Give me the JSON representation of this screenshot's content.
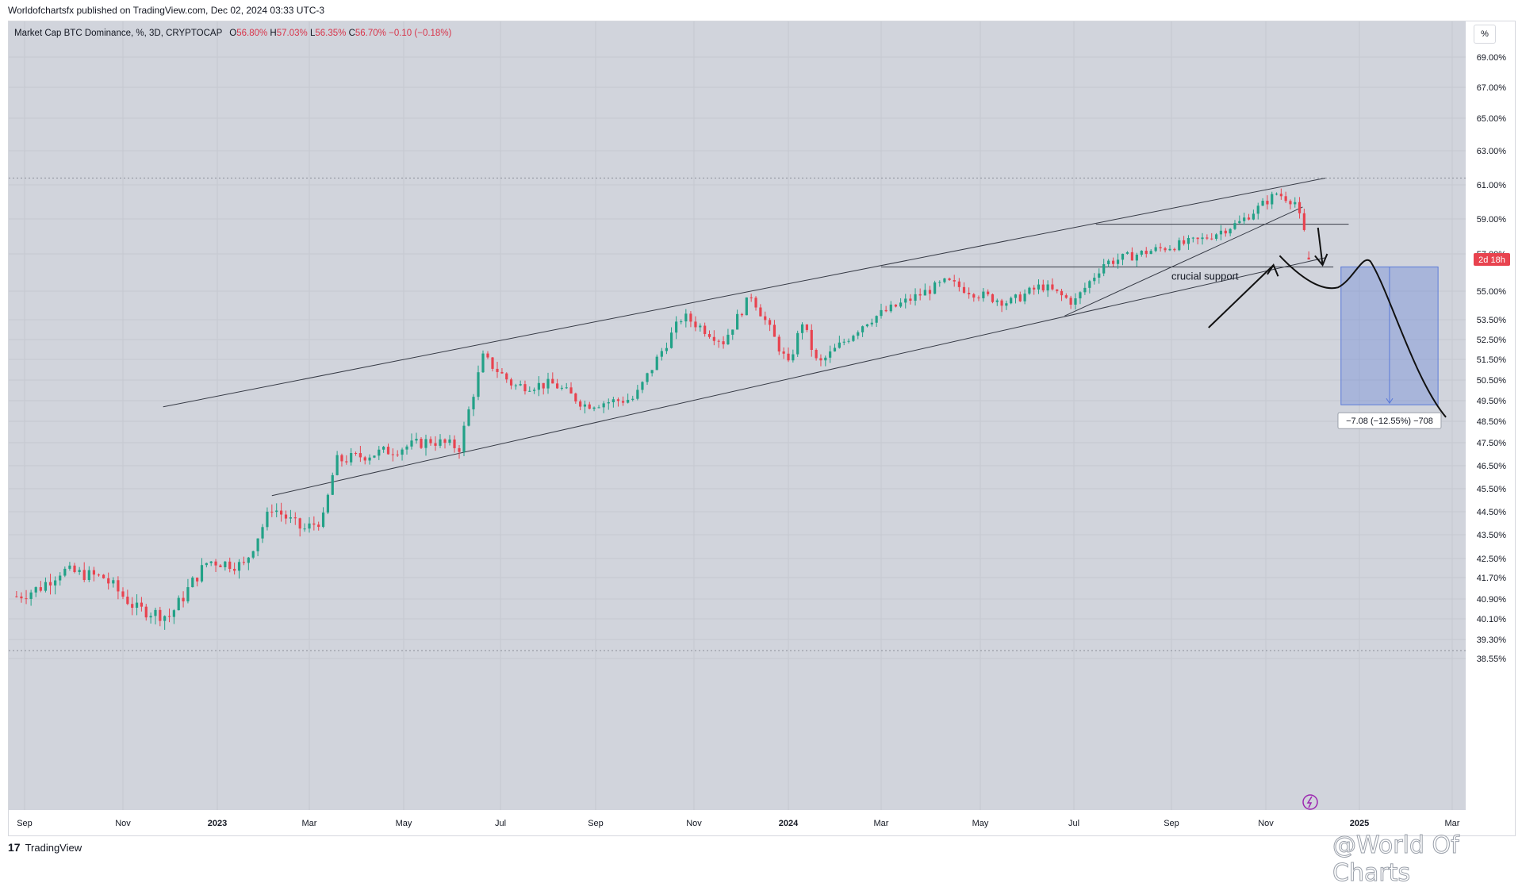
{
  "header": {
    "published": "Worldofchartsfx published on TradingView.com, Dec 02, 2024 03:33 UTC-3"
  },
  "legend": {
    "symbol": "Market Cap BTC Dominance, %, 3D, CRYPTOCAP",
    "o_label": "O",
    "o": "56.80%",
    "h_label": "H",
    "h": "57.03%",
    "l_label": "L",
    "l": "56.35%",
    "c_label": "C",
    "c": "56.70%",
    "change": "−0.10 (−0.18%)"
  },
  "toolbar": {
    "scale_label": "%"
  },
  "footer": {
    "brand": "TradingView",
    "logo": "17",
    "watermark": "@World Of Charts"
  },
  "colors": {
    "up": "#22a187",
    "down": "#e8434f",
    "plot_bg": "#d1d4dc",
    "measure_fill": "#5b7ad8",
    "line": "#363a45"
  },
  "chart_data": {
    "type": "candlestick",
    "title": "Market Cap BTC Dominance, %, 3D, CRYPTOCAP",
    "y_axis": {
      "ticks": [
        "69.00%",
        "67.00%",
        "65.00%",
        "63.00%",
        "61.00%",
        "59.00%",
        "57.00%",
        "55.00%",
        "53.50%",
        "52.50%",
        "51.50%",
        "50.50%",
        "49.50%",
        "48.50%",
        "47.50%",
        "46.50%",
        "45.50%",
        "44.50%",
        "43.50%",
        "42.50%",
        "41.70%",
        "40.90%",
        "40.10%",
        "39.30%",
        "38.55%"
      ],
      "last_price_label": "2d 18h",
      "last_price": 56.7
    },
    "x_axis": {
      "ticks": [
        "Sep",
        "Nov",
        "2023",
        "Mar",
        "May",
        "Jul",
        "Sep",
        "Nov",
        "2024",
        "Mar",
        "May",
        "Jul",
        "Sep",
        "Nov",
        "2025",
        "Mar"
      ],
      "range": [
        "2022-08-20",
        "2025-04-01"
      ]
    },
    "price_path_key_points": [
      [
        "2022-08-27",
        41.0
      ],
      [
        "2022-09-10",
        41.3
      ],
      [
        "2022-09-24",
        42.0
      ],
      [
        "2022-10-20",
        41.7
      ],
      [
        "2022-11-10",
        40.5
      ],
      [
        "2022-12-01",
        40.2
      ],
      [
        "2022-12-26",
        42.4
      ],
      [
        "2023-01-18",
        42.2
      ],
      [
        "2023-02-05",
        44.7
      ],
      [
        "2023-02-25",
        43.7
      ],
      [
        "2023-03-10",
        44.2
      ],
      [
        "2023-03-18",
        46.7
      ],
      [
        "2023-04-25",
        47.2
      ],
      [
        "2023-05-18",
        47.6
      ],
      [
        "2023-06-05",
        47.3
      ],
      [
        "2023-06-20",
        51.6
      ],
      [
        "2023-07-10",
        50.2
      ],
      [
        "2023-08-05",
        50.3
      ],
      [
        "2023-08-25",
        49.3
      ],
      [
        "2023-09-25",
        49.6
      ],
      [
        "2023-10-25",
        53.7
      ],
      [
        "2023-11-20",
        52.4
      ],
      [
        "2023-12-08",
        54.8
      ],
      [
        "2024-01-01",
        51.2
      ],
      [
        "2024-01-10",
        53.4
      ],
      [
        "2024-01-20",
        51.2
      ],
      [
        "2024-02-20",
        53.4
      ],
      [
        "2024-03-10",
        54.2
      ],
      [
        "2024-04-10",
        55.5
      ],
      [
        "2024-05-01",
        54.8
      ],
      [
        "2024-05-20",
        54.4
      ],
      [
        "2024-06-10",
        55.3
      ],
      [
        "2024-07-01",
        54.4
      ],
      [
        "2024-07-20",
        56.5
      ],
      [
        "2024-08-20",
        57.2
      ],
      [
        "2024-09-20",
        57.8
      ],
      [
        "2024-10-15",
        58.8
      ],
      [
        "2024-11-08",
        60.5
      ],
      [
        "2024-11-20",
        60.0
      ],
      [
        "2024-12-01",
        56.7
      ]
    ],
    "last_candle": {
      "open": 56.8,
      "high": 57.03,
      "low": 56.35,
      "close": 56.7
    },
    "drawings": {
      "channel_top": [
        [
          "2022-11-27",
          49.2
        ],
        [
          "2024-12-10",
          61.4
        ]
      ],
      "channel_bottom": [
        [
          "2023-02-05",
          45.2
        ],
        [
          "2024-12-10",
          56.8
        ]
      ],
      "inner_rising_line": [
        [
          "2024-06-25",
          53.7
        ],
        [
          "2024-11-25",
          59.7
        ]
      ],
      "support_level": 56.3,
      "resistance_level": 58.7,
      "top_level": 61.4,
      "annotations": [
        {
          "text": "crucial support"
        }
      ],
      "measure_box": {
        "label": "−7.08 (−12.55%) −708"
      }
    }
  }
}
